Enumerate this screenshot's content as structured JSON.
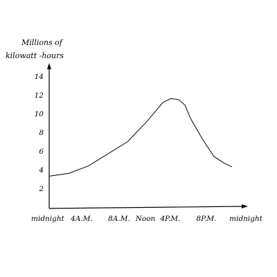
{
  "chart_data": {
    "type": "line",
    "title": "",
    "ylabel_lines": [
      "Millions of",
      "kilowatt -hours"
    ],
    "xlabel": "",
    "xlim": [
      0,
      24
    ],
    "ylim": [
      0,
      15
    ],
    "y_ticks": [
      2,
      4,
      6,
      8,
      10,
      12,
      14
    ],
    "x_ticks": [
      {
        "x": 0,
        "label": "midnight"
      },
      {
        "x": 4,
        "label": "4A.M."
      },
      {
        "x": 8,
        "label": "8A.M."
      },
      {
        "x": 12,
        "label": "Noon"
      },
      {
        "x": 16,
        "label": "4P.M."
      },
      {
        "x": 20,
        "label": "8P.M."
      },
      {
        "x": 24,
        "label": "midnight"
      }
    ],
    "grid": false,
    "series": [
      {
        "x": [
          0,
          2.5,
          5,
          7.5,
          10,
          12.5,
          14.5,
          15.5,
          16.5,
          17.3,
          18,
          19.5,
          21,
          22.3,
          23.3
        ],
        "y": [
          3.3,
          3.6,
          4.4,
          5.7,
          7.0,
          9.2,
          11.2,
          11.6,
          11.5,
          10.9,
          9.5,
          7.3,
          5.4,
          4.7,
          4.3
        ]
      }
    ]
  }
}
